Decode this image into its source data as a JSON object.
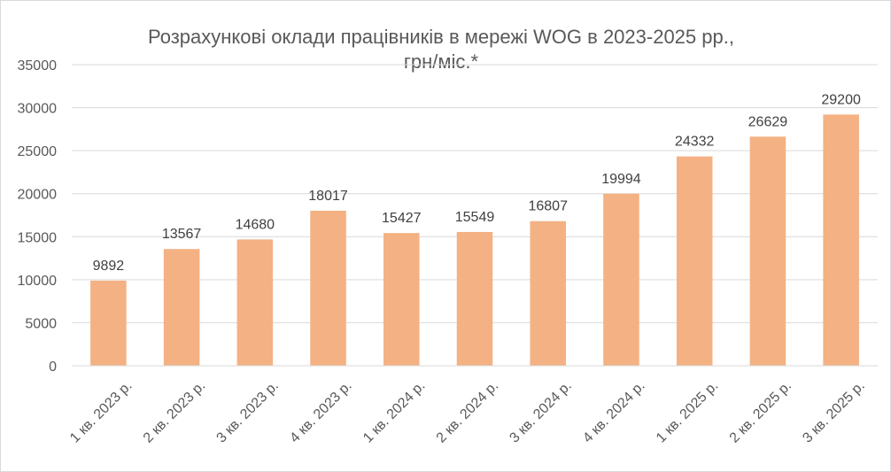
{
  "chart_data": {
    "type": "bar",
    "title": "Розрахункові оклади працівників в мережі WOG в 2023-2025 рр.,",
    "subtitle": "грн/міс.*",
    "xlabel": "",
    "ylabel": "",
    "categories": [
      "1 кв. 2023 р.",
      "2 кв. 2023 р.",
      "3 кв. 2023 р.",
      "4 кв. 2023 р.",
      "1 кв. 2024 р.",
      "2 кв. 2024 р.",
      "3 кв. 2024 р.",
      "4 кв. 2024 р.",
      "1 кв. 2025 р.",
      "2 кв. 2025 р.",
      "3 кв. 2025 р."
    ],
    "values": [
      9892,
      13567,
      14680,
      18017,
      15427,
      15549,
      16807,
      19994,
      24332,
      26629,
      29200
    ],
    "ylim": [
      0,
      35000
    ],
    "yticks": [
      "0",
      "5000",
      "10000",
      "15000",
      "20000",
      "25000",
      "30000",
      "35000"
    ],
    "grid": true,
    "legend": "none",
    "bar_color": "#F4B183"
  }
}
